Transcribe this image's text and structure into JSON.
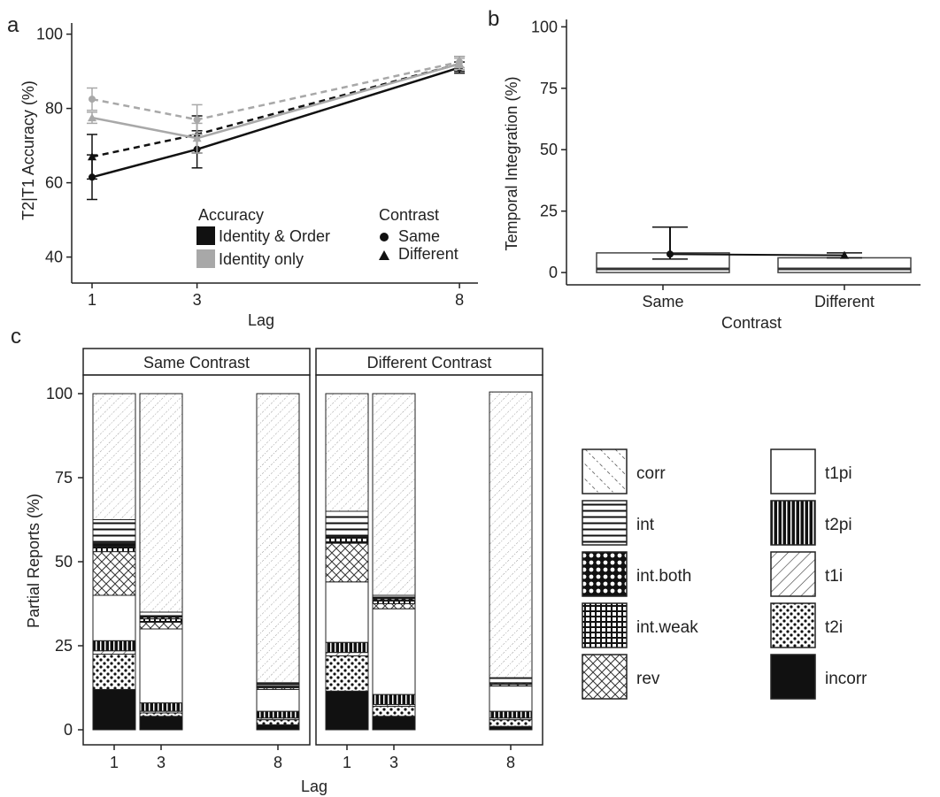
{
  "panel_labels": {
    "a": "a",
    "b": "b",
    "c": "c"
  },
  "chart_data": [
    {
      "id": "a",
      "type": "line",
      "xlabel": "Lag",
      "ylabel": "T2|T1 Accuracy (%)",
      "x": [
        1,
        3,
        8
      ],
      "x_ticks": [
        "1",
        "3",
        "8"
      ],
      "y_ticks": [
        "40",
        "60",
        "80",
        "100"
      ],
      "ylim": [
        33,
        103
      ],
      "grid": false,
      "series": [
        {
          "accuracy": "Identity & Order",
          "contrast": "Same",
          "values": [
            61.5,
            69,
            91
          ],
          "error": [
            6,
            5,
            1.5
          ],
          "color": "#111111",
          "dash": false,
          "marker": "circle"
        },
        {
          "accuracy": "Identity & Order",
          "contrast": "Different",
          "values": [
            67,
            73,
            92
          ],
          "error": [
            6,
            5,
            2
          ],
          "color": "#111111",
          "dash": true,
          "marker": "triangle"
        },
        {
          "accuracy": "Identity only",
          "contrast": "Same",
          "values": [
            77.5,
            72,
            92
          ],
          "error": [
            1.5,
            4,
            1.5
          ],
          "color": "#a8a8a8",
          "dash": false,
          "marker": "triangle"
        },
        {
          "accuracy": "Identity only",
          "contrast": "Different",
          "values": [
            82.5,
            77,
            92.5
          ],
          "error": [
            3,
            4,
            1.5
          ],
          "color": "#a8a8a8",
          "dash": true,
          "marker": "circle"
        }
      ],
      "legend_accuracy": {
        "title": "Accuracy",
        "items": [
          {
            "label": "Identity & Order",
            "color": "#111111"
          },
          {
            "label": "Identity only",
            "color": "#a8a8a8"
          }
        ]
      },
      "legend_contrast": {
        "title": "Contrast",
        "items": [
          {
            "label": "Same",
            "marker": "circle"
          },
          {
            "label": "Different",
            "marker": "triangle"
          }
        ]
      }
    },
    {
      "id": "b",
      "type": "box",
      "xlabel": "Contrast",
      "ylabel": "Temporal Integration (%)",
      "categories": [
        "Same",
        "Different"
      ],
      "y_ticks": [
        "0",
        "25",
        "50",
        "75",
        "100"
      ],
      "ylim": [
        -5,
        103
      ],
      "boxes": [
        {
          "category": "Same",
          "q1": 0,
          "median": 1.5,
          "q3": 8
        },
        {
          "category": "Different",
          "q1": 0,
          "median": 1.5,
          "q3": 6
        }
      ],
      "mean_series": [
        {
          "category": "Same",
          "mean": 7.5,
          "err_lo": 5.5,
          "err_hi": 18.5,
          "marker": "circle"
        },
        {
          "category": "Different",
          "mean": 7,
          "err_lo": 6,
          "err_hi": 8,
          "marker": "triangle"
        }
      ]
    },
    {
      "id": "c",
      "type": "stacked_bar",
      "xlabel": "Lag",
      "ylabel": "Partial Reports (%)",
      "y_ticks": [
        "0",
        "25",
        "50",
        "75",
        "100"
      ],
      "ylim": [
        0,
        100
      ],
      "x": [
        1,
        3,
        8
      ],
      "x_ticks": [
        "1",
        "3",
        "8"
      ],
      "stack_order": [
        "incorr",
        "t2i",
        "t1i",
        "t2pi",
        "t1pi",
        "rev",
        "int.weak",
        "int.both",
        "int",
        "corr"
      ],
      "facets": [
        {
          "title": "Same Contrast",
          "bars": [
            {
              "lag": 1,
              "segments": {
                "incorr": 12,
                "t2i": 10.5,
                "t1i": 1,
                "t2pi": 3,
                "t1pi": 13.5,
                "rev": 13,
                "int.weak": 1.5,
                "int.both": 1,
                "int": 7,
                "corr": 37.5
              }
            },
            {
              "lag": 3,
              "segments": {
                "incorr": 4,
                "t2i": 1,
                "t1i": 0.5,
                "t2pi": 2.5,
                "t1pi": 22,
                "rev": 2,
                "int.weak": 1,
                "int.both": 0.5,
                "int": 1.5,
                "corr": 65
              }
            },
            {
              "lag": 8,
              "segments": {
                "incorr": 1.5,
                "t2i": 1.5,
                "t1i": 0.5,
                "t2pi": 2,
                "t1pi": 6.5,
                "rev": 0.5,
                "int.weak": 0.2,
                "int.both": 0.3,
                "int": 1,
                "corr": 86
              }
            }
          ]
        },
        {
          "title": "Different Contrast",
          "bars": [
            {
              "lag": 1,
              "segments": {
                "incorr": 11.5,
                "t2i": 10.5,
                "t1i": 1,
                "t2pi": 3,
                "t1pi": 18,
                "rev": 11.5,
                "int.weak": 1.5,
                "int.both": 0.5,
                "int": 7.5,
                "corr": 35
              }
            },
            {
              "lag": 3,
              "segments": {
                "incorr": 4,
                "t2i": 3,
                "t1i": 0.5,
                "t2pi": 3,
                "t1pi": 25.5,
                "rev": 1.5,
                "int.weak": 1,
                "int.both": 0.5,
                "int": 1,
                "corr": 60
              }
            },
            {
              "lag": 8,
              "segments": {
                "incorr": 1,
                "t2i": 2,
                "t1i": 0.5,
                "t2pi": 2,
                "t1pi": 7.5,
                "rev": 0.5,
                "int.weak": 0.2,
                "int.both": 0.3,
                "int": 1.5,
                "corr": 85
              }
            }
          ]
        }
      ],
      "legend": [
        {
          "key": "corr",
          "label": "corr"
        },
        {
          "key": "int",
          "label": "int"
        },
        {
          "key": "int.both",
          "label": "int.both"
        },
        {
          "key": "int.weak",
          "label": "int.weak"
        },
        {
          "key": "rev",
          "label": "rev"
        },
        {
          "key": "t1pi",
          "label": "t1pi"
        },
        {
          "key": "t2pi",
          "label": "t2pi"
        },
        {
          "key": "t1i",
          "label": "t1i"
        },
        {
          "key": "t2i",
          "label": "t2i"
        },
        {
          "key": "incorr",
          "label": "incorr"
        }
      ]
    }
  ]
}
